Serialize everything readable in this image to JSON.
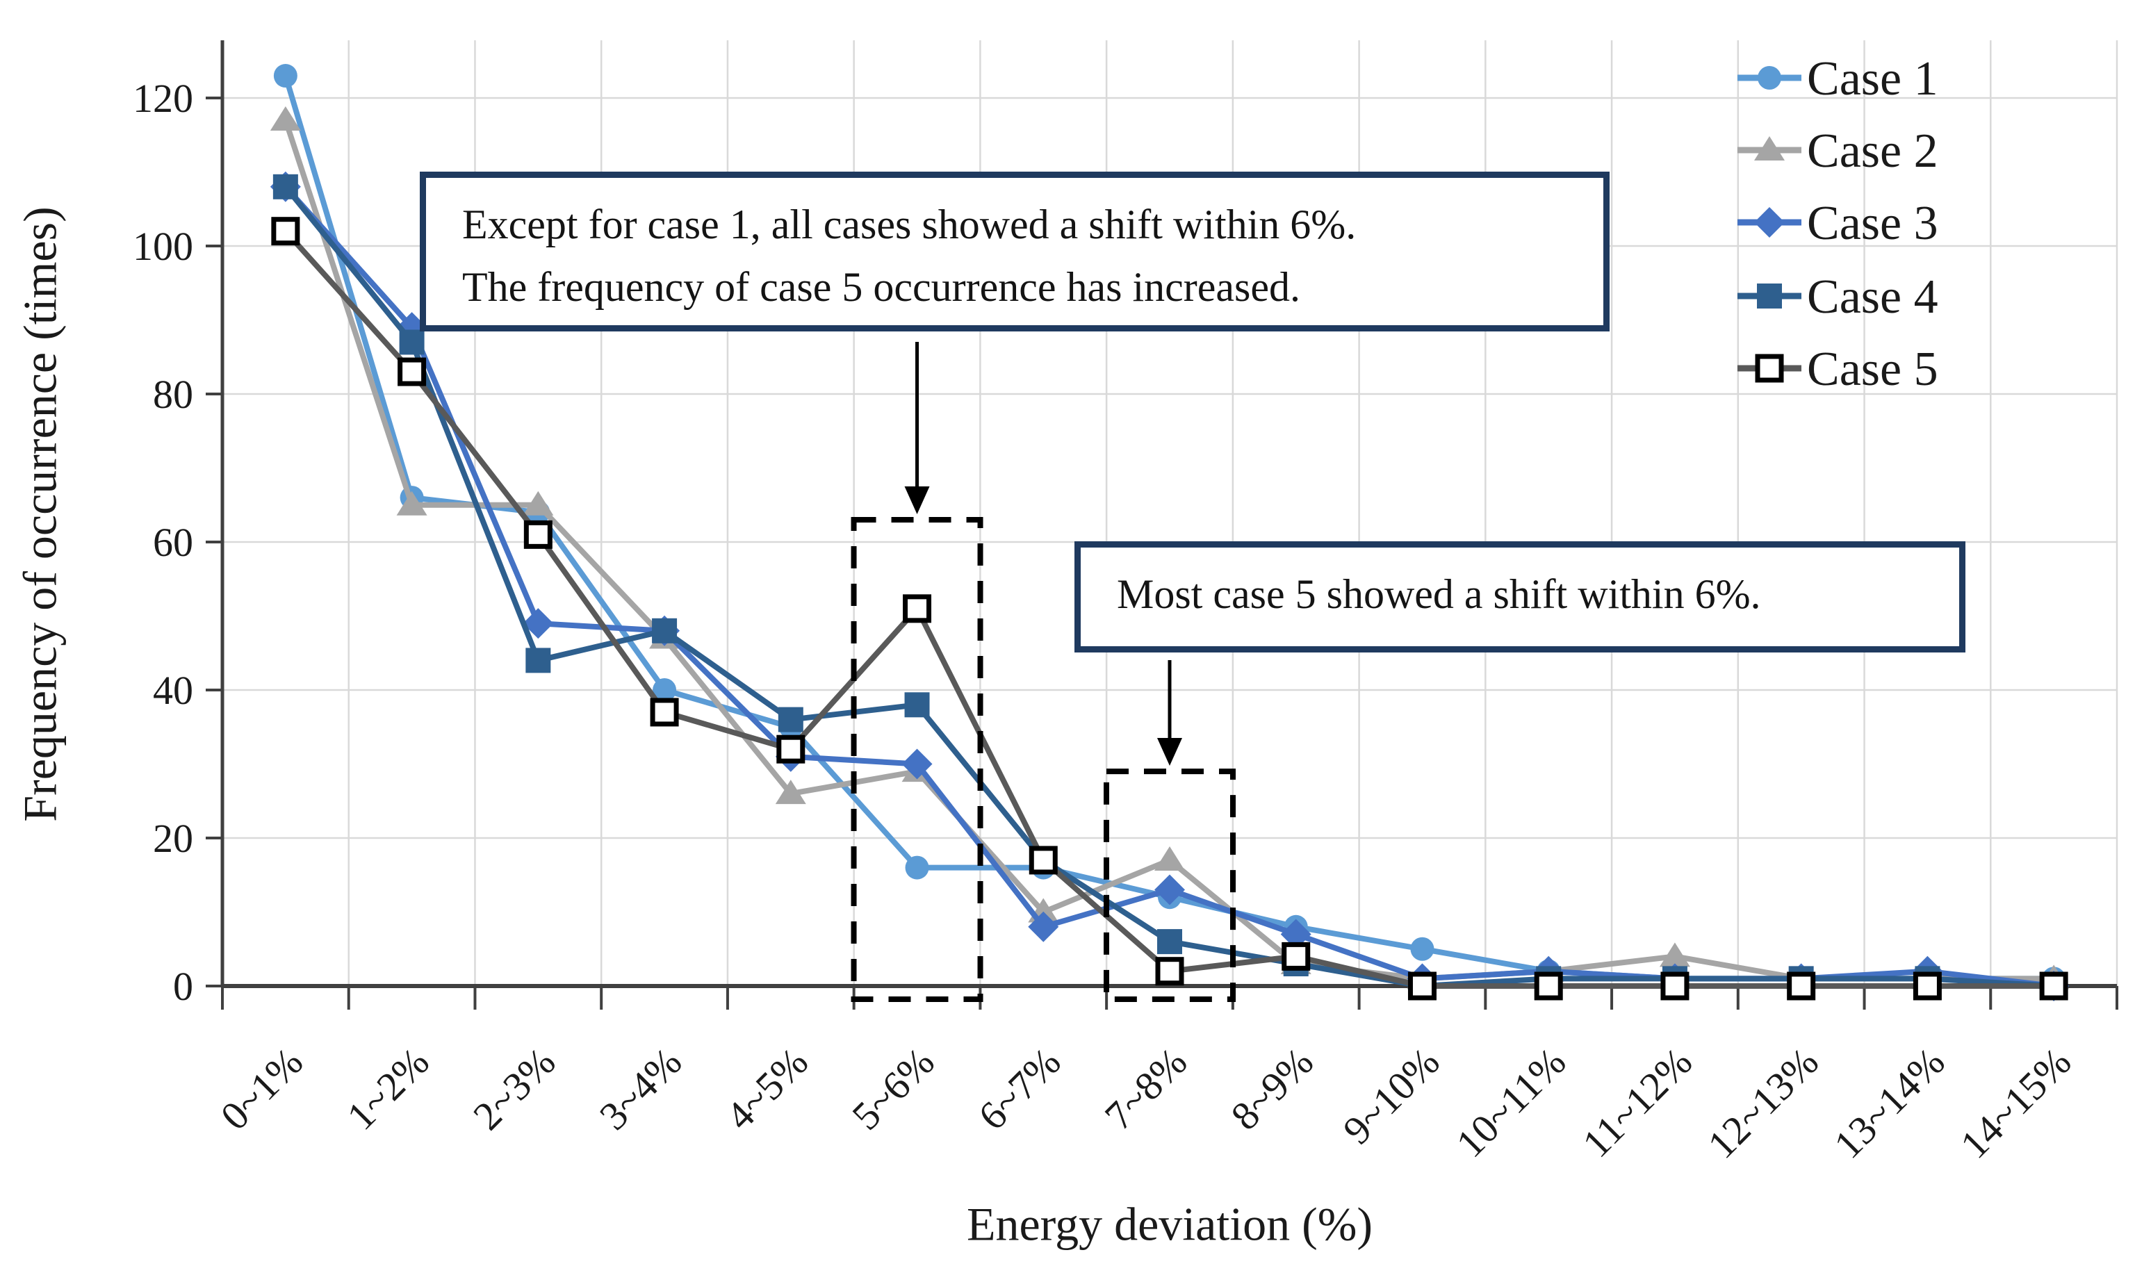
{
  "chart_data": {
    "type": "line",
    "title": "",
    "xlabel": "Energy deviation (%)",
    "ylabel": "Frequency of occurrence (times)",
    "categories": [
      "0~1%",
      "1~2%",
      "2~3%",
      "3~4%",
      "4~5%",
      "5~6%",
      "6~7%",
      "7~8%",
      "8~9%",
      "9~10%",
      "10~11%",
      "11~12%",
      "12~13%",
      "13~14%",
      "14~15%"
    ],
    "y_ticks": [
      0,
      20,
      40,
      60,
      80,
      100,
      120
    ],
    "ylim": [
      0,
      130
    ],
    "grid": true,
    "legend_position": "top-right",
    "series": [
      {
        "name": "Case 1",
        "marker": "circle",
        "color": "#5B9BD5",
        "values": [
          123,
          66,
          64,
          40,
          35,
          16,
          16,
          12,
          8,
          5,
          2,
          1,
          1,
          1,
          1
        ]
      },
      {
        "name": "Case 2",
        "marker": "triangle",
        "color": "#A5A5A5",
        "values": [
          117,
          65,
          65,
          47,
          26,
          29,
          10,
          17,
          3,
          1,
          2,
          4,
          1,
          1,
          1
        ]
      },
      {
        "name": "Case 3",
        "marker": "diamond",
        "color": "#4472C4",
        "values": [
          108,
          89,
          49,
          48,
          31,
          30,
          8,
          13,
          7,
          1,
          2,
          1,
          1,
          2,
          0
        ]
      },
      {
        "name": "Case 4",
        "marker": "square",
        "color": "#2E5F8E",
        "values": [
          108,
          87,
          44,
          48,
          36,
          38,
          17,
          6,
          3,
          0,
          1,
          1,
          1,
          1,
          0
        ]
      },
      {
        "name": "Case 5",
        "marker": "open-square",
        "color": "#595959",
        "marker_fill": "#FFFFFF",
        "marker_stroke": "#000000",
        "values": [
          102,
          83,
          61,
          37,
          32,
          51,
          17,
          2,
          4,
          0,
          0,
          0,
          0,
          0,
          0
        ]
      }
    ],
    "annotations": [
      {
        "lines": [
          "Except for case 1, all cases showed a shift within 6%.",
          "The frequency of case 5 occurrence has increased."
        ],
        "target_category": "5~6%"
      },
      {
        "lines": [
          "Most case 5 showed a shift within 6%."
        ],
        "target_category": "7~8%"
      }
    ],
    "highlight_boxes": [
      {
        "category": "5~6%",
        "from_value": 0,
        "to_value": 63
      },
      {
        "category": "7~8%",
        "from_value": 0,
        "to_value": 29
      }
    ]
  },
  "colors": {
    "gridline": "#D9D9D9",
    "axis": "#404040",
    "annotation_border": "#1F3A5F",
    "arrow": "#000000",
    "dashed_box": "#000000",
    "text": "#1A1A1A"
  }
}
